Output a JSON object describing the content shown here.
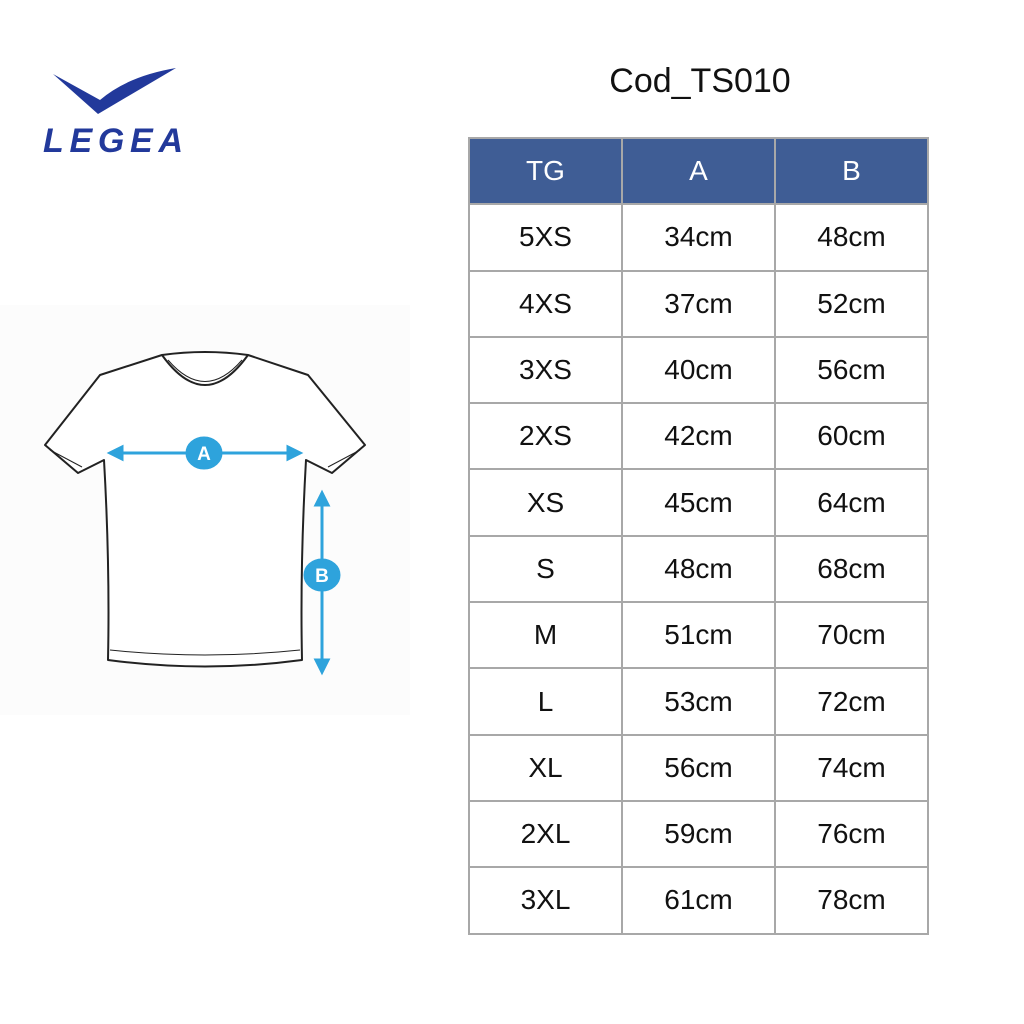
{
  "brand": {
    "name": "LEGEA",
    "color": "#22399b"
  },
  "product_code": "Cod_TS010",
  "diagram": {
    "labels": [
      "A",
      "B"
    ],
    "accent": "#2ea3dc"
  },
  "table": {
    "header_color": "#3f5d95",
    "columns": [
      "TG",
      "A",
      "B"
    ],
    "rows": [
      [
        "5XS",
        "34cm",
        "48cm"
      ],
      [
        "4XS",
        "37cm",
        "52cm"
      ],
      [
        "3XS",
        "40cm",
        "56cm"
      ],
      [
        "2XS",
        "42cm",
        "60cm"
      ],
      [
        "XS",
        "45cm",
        "64cm"
      ],
      [
        "S",
        "48cm",
        "68cm"
      ],
      [
        "M",
        "51cm",
        "70cm"
      ],
      [
        "L",
        "53cm",
        "72cm"
      ],
      [
        "XL",
        "56cm",
        "74cm"
      ],
      [
        "2XL",
        "59cm",
        "76cm"
      ],
      [
        "3XL",
        "61cm",
        "78cm"
      ]
    ]
  }
}
